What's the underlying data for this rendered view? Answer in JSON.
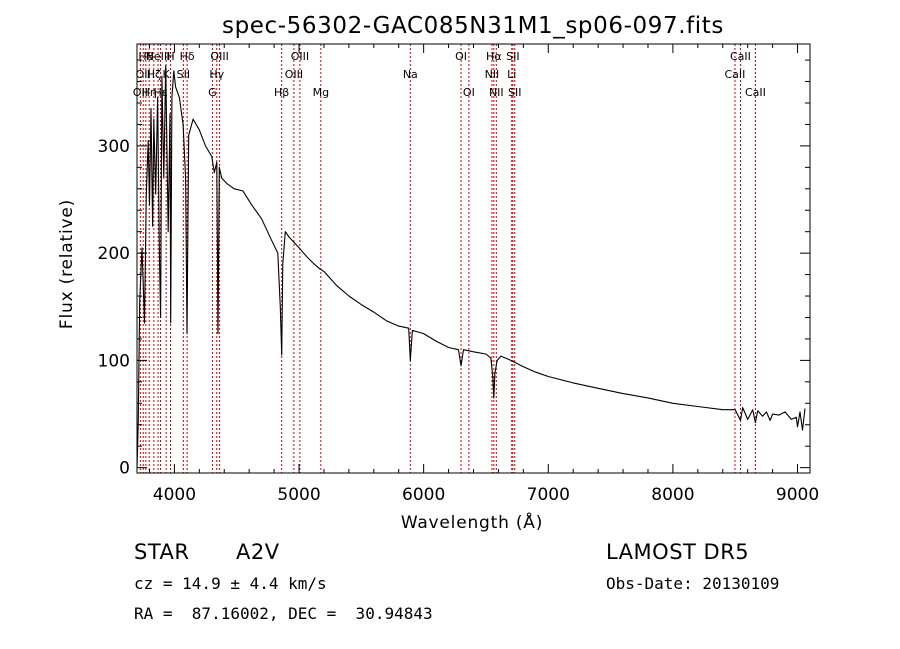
{
  "chart_data": {
    "type": "line",
    "title": "spec-56302-GAC085N31M1_sp06-097.fits",
    "xlabel": "Wavelength (Å)",
    "ylabel": "Flux (relative)",
    "xlim": [
      3700,
      9100
    ],
    "ylim": [
      -5,
      395
    ],
    "xticks": [
      4000,
      5000,
      6000,
      7000,
      8000,
      9000
    ],
    "xtick_labels": [
      "4000",
      "5000",
      "6000",
      "7000",
      "8000",
      "9000"
    ],
    "yticks": [
      0,
      100,
      200,
      300
    ],
    "ytick_labels": [
      "0",
      "100",
      "200",
      "300"
    ],
    "grid": false,
    "line_color": "#000000",
    "marker_color": "#cc0000",
    "series": [
      {
        "x": [
          3700,
          3710,
          3722,
          3740,
          3760,
          3775,
          3790,
          3800,
          3812,
          3825,
          3835,
          3850,
          3865,
          3880,
          3889,
          3900,
          3915,
          3930,
          3950,
          3965,
          3970,
          3980,
          3995,
          4010,
          4040,
          4070,
          4090,
          4101,
          4115,
          4150,
          4200,
          4250,
          4300,
          4320,
          4340,
          4350,
          4360,
          4380,
          4420,
          4480,
          4550,
          4620,
          4700,
          4780,
          4830,
          4850,
          4861,
          4870,
          4890,
          4920,
          4960,
          5000,
          5060,
          5120,
          5170,
          5200,
          5300,
          5400,
          5500,
          5600,
          5700,
          5800,
          5880,
          5893,
          5910,
          6000,
          6100,
          6200,
          6280,
          6300,
          6320,
          6400,
          6500,
          6540,
          6555,
          6563,
          6572,
          6590,
          6620,
          6700,
          6800,
          6900,
          7000,
          7200,
          7400,
          7600,
          7800,
          8000,
          8200,
          8400,
          8500,
          8542,
          8560,
          8600,
          8640,
          8662,
          8680,
          8720,
          8750,
          8780,
          8800,
          8850,
          8900,
          8950,
          8990,
          9000,
          9020,
          9040,
          9060
        ],
        "values": [
          0,
          40,
          155,
          205,
          135,
          255,
          305,
          245,
          335,
          225,
          325,
          255,
          345,
          200,
          140,
          365,
          270,
          375,
          220,
          330,
          135,
          345,
          370,
          355,
          345,
          320,
          270,
          125,
          310,
          325,
          315,
          300,
          290,
          275,
          285,
          125,
          280,
          270,
          265,
          260,
          258,
          245,
          232,
          212,
          200,
          150,
          105,
          190,
          220,
          215,
          210,
          205,
          197,
          190,
          185,
          183,
          170,
          160,
          152,
          145,
          137,
          132,
          130,
          100,
          128,
          125,
          118,
          112,
          110,
          95,
          110,
          108,
          106,
          102,
          85,
          65,
          88,
          100,
          104,
          100,
          94,
          89,
          85,
          79,
          74,
          69,
          65,
          60,
          57,
          54,
          54,
          44,
          56,
          45,
          54,
          42,
          53,
          48,
          52,
          44,
          50,
          49,
          52,
          45,
          47,
          38,
          52,
          35,
          55
        ]
      }
    ],
    "line_markers": [
      {
        "x": 3727,
        "label": "OII",
        "row": 3
      },
      {
        "x": 3750,
        "label": "OII",
        "row": 2
      },
      {
        "x": 3771,
        "label": "Hθ",
        "row": 1
      },
      {
        "x": 3798,
        "label": "Hη",
        "row": 3
      },
      {
        "x": 3835,
        "label": "Hζ",
        "row": 2
      },
      {
        "x": 3869,
        "label": "NeIII",
        "row": 1
      },
      {
        "x": 3889,
        "label": "Hε",
        "row": 3
      },
      {
        "x": 3934,
        "label": "K",
        "row": 2
      },
      {
        "x": 3969,
        "label": "H",
        "row": 1
      },
      {
        "x": 4072,
        "label": "SII",
        "row": 2
      },
      {
        "x": 4102,
        "label": "Hδ",
        "row": 1
      },
      {
        "x": 4305,
        "label": "G",
        "row": 3
      },
      {
        "x": 4340,
        "label": "Hγ",
        "row": 2
      },
      {
        "x": 4363,
        "label": "OIII",
        "row": 1
      },
      {
        "x": 4861,
        "label": "Hβ",
        "row": 3
      },
      {
        "x": 4959,
        "label": "OIII",
        "row": 2
      },
      {
        "x": 5007,
        "label": "OIII",
        "row": 1
      },
      {
        "x": 5175,
        "label": "Mg",
        "row": 3
      },
      {
        "x": 5893,
        "label": "Na",
        "row": 2
      },
      {
        "x": 6300,
        "label": "OI",
        "row": 1
      },
      {
        "x": 6363,
        "label": "OI",
        "row": 3
      },
      {
        "x": 6548,
        "label": "NII",
        "row": 2
      },
      {
        "x": 6563,
        "label": "Hα",
        "row": 1
      },
      {
        "x": 6583,
        "label": "NII",
        "row": 3
      },
      {
        "x": 6707,
        "label": "Li",
        "row": 2
      },
      {
        "x": 6716,
        "label": "SII",
        "row": 1
      },
      {
        "x": 6731,
        "label": "SII",
        "row": 3
      },
      {
        "x": 8498,
        "label": "CaII",
        "row": 2
      },
      {
        "x": 8542,
        "label": "CaII",
        "row": 1
      },
      {
        "x": 8662,
        "label": "CaII",
        "row": 3
      }
    ]
  },
  "info": {
    "object_class": "STAR",
    "subclass": "A2V",
    "survey": "LAMOST DR5",
    "velocity": "cz = 14.9 ± 4.4 km/s",
    "obs_date": "Obs-Date: 20130109",
    "coords": "RA =  87.16002, DEC =  30.94843"
  }
}
